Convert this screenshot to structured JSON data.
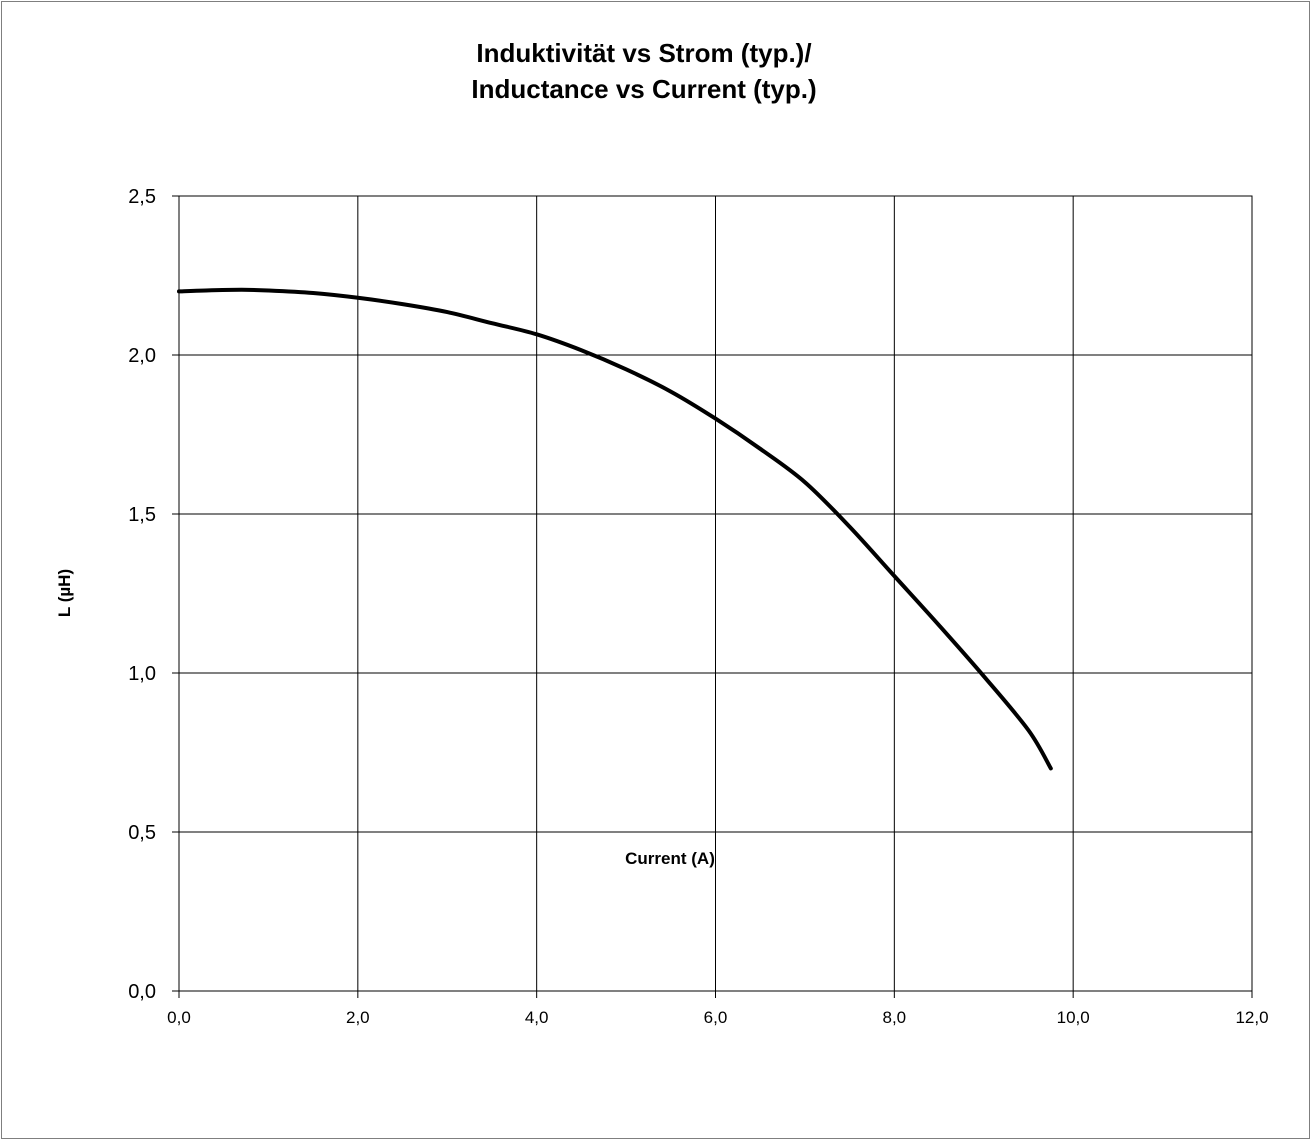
{
  "chart_data": {
    "type": "line",
    "title_line1": "Induktivität vs Strom (typ.)/",
    "title_line2": "Inductance vs Current (typ.)",
    "xlabel": "Current (A)",
    "ylabel": "L (µH)",
    "xlim": [
      0,
      12
    ],
    "ylim": [
      0,
      2.5
    ],
    "grid": true,
    "x_ticks": [
      "0,0",
      "2,0",
      "4,0",
      "6,0",
      "8,0",
      "10,0",
      "12,0"
    ],
    "y_ticks": [
      "0,0",
      "0,5",
      "1,0",
      "1,5",
      "2,0",
      "2,5"
    ],
    "line_color": "#000000",
    "series": [
      {
        "x": [
          0.0,
          0.3,
          0.7,
          1.0,
          1.5,
          2.0,
          2.5,
          3.0,
          3.5,
          4.0,
          4.5,
          5.0,
          5.5,
          6.0,
          6.5,
          7.0,
          7.5,
          8.0,
          8.5,
          9.0,
          9.5,
          9.75
        ],
        "y": [
          2.2,
          2.203,
          2.205,
          2.203,
          2.195,
          2.18,
          2.16,
          2.135,
          2.1,
          2.065,
          2.015,
          1.955,
          1.885,
          1.8,
          1.705,
          1.6,
          1.46,
          1.305,
          1.15,
          0.99,
          0.82,
          0.7
        ]
      }
    ]
  }
}
